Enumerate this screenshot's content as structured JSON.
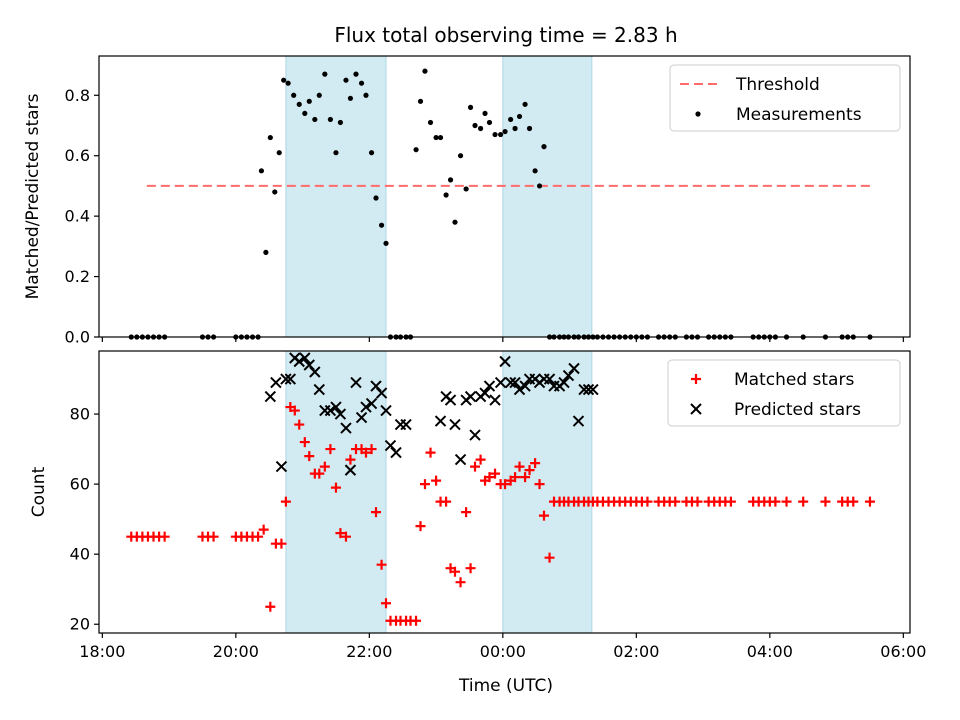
{
  "title": "Flux total observing time = 2.83 h",
  "xlabel": "Time (UTC)",
  "colors": {
    "shade": "#add8e6",
    "threshold": "#ff6b6b",
    "measurements": "#000000",
    "matched": "#ff0000",
    "predicted": "#000000"
  },
  "chart_data": [
    {
      "type": "scatter",
      "ylabel": "Matched/Predicted stars",
      "xlim": [
        18.0,
        6.05
      ],
      "x_axis_note": "times in hours UTC across midnight",
      "ylim": [
        0,
        0.93
      ],
      "yticks": [
        "0.0",
        "0.2",
        "0.4",
        "0.6",
        "0.8"
      ],
      "legend": [
        "Threshold",
        "Measurements"
      ],
      "legend_position": "top-right",
      "threshold": 0.5,
      "threshold_xrange": [
        "18:40",
        "05:30"
      ],
      "shaded_intervals": [
        [
          "20:45",
          "22:15"
        ],
        [
          "00:00",
          "01:20"
        ]
      ],
      "series": [
        {
          "name": "Measurements",
          "x": [
            "18:26",
            "18:31",
            "18:36",
            "18:41",
            "18:46",
            "18:51",
            "18:56",
            "19:30",
            "19:35",
            "19:40",
            "20:00",
            "20:05",
            "20:10",
            "20:15",
            "20:20",
            "20:23",
            "20:27",
            "20:31",
            "20:35",
            "20:39",
            "20:43",
            "20:47",
            "20:52",
            "20:57",
            "21:02",
            "21:06",
            "21:11",
            "21:15",
            "21:20",
            "21:25",
            "21:30",
            "21:34",
            "21:39",
            "21:43",
            "21:48",
            "21:53",
            "21:57",
            "22:02",
            "22:06",
            "22:11",
            "22:15",
            "22:19",
            "22:24",
            "22:28",
            "22:33",
            "22:37",
            "22:42",
            "22:46",
            "22:50",
            "22:55",
            "23:00",
            "23:04",
            "23:09",
            "23:13",
            "23:17",
            "23:22",
            "23:27",
            "23:31",
            "23:35",
            "23:40",
            "23:44",
            "23:48",
            "23:53",
            "23:58",
            "00:02",
            "00:07",
            "00:11",
            "00:15",
            "00:20",
            "00:24",
            "00:29",
            "00:33",
            "00:37",
            "00:42",
            "00:46",
            "00:51",
            "00:55",
            "00:59",
            "01:04",
            "01:08",
            "01:13",
            "01:17",
            "01:21",
            "01:25",
            "01:30",
            "01:35",
            "01:40",
            "01:45",
            "01:50",
            "01:55",
            "02:00",
            "02:05",
            "02:10",
            "02:20",
            "02:25",
            "02:30",
            "02:35",
            "02:45",
            "02:50",
            "02:55",
            "03:05",
            "03:10",
            "03:15",
            "03:20",
            "03:25",
            "03:45",
            "03:50",
            "03:55",
            "04:00",
            "04:05",
            "04:15",
            "04:30",
            "04:50",
            "05:05",
            "05:10",
            "05:15",
            "05:30"
          ],
          "y": [
            0,
            0,
            0,
            0,
            0,
            0,
            0,
            0,
            0,
            0,
            0,
            0,
            0,
            0,
            0,
            0.55,
            0.28,
            0.66,
            0.48,
            0.61,
            0.85,
            0.84,
            0.8,
            0.77,
            0.74,
            0.78,
            0.72,
            0.8,
            0.87,
            0.72,
            0.61,
            0.71,
            0.85,
            0.79,
            0.87,
            0.84,
            0.8,
            0.61,
            0.46,
            0.37,
            0.31,
            0,
            0,
            0,
            0,
            0,
            0.62,
            0.78,
            0.88,
            0.71,
            0.66,
            0.66,
            0.47,
            0.52,
            0.38,
            0.6,
            0.49,
            0.76,
            0.7,
            0.69,
            0.74,
            0.71,
            0.67,
            0.67,
            0.68,
            0.72,
            0.69,
            0.73,
            0.77,
            0.69,
            0.55,
            0.5,
            0.63,
            0,
            0,
            0,
            0,
            0,
            0,
            0,
            0,
            0,
            0,
            0,
            0,
            0,
            0,
            0,
            0,
            0,
            0,
            0,
            0,
            0,
            0,
            0,
            0,
            0,
            0,
            0,
            0,
            0,
            0,
            0,
            0,
            0,
            0,
            0,
            0,
            0,
            0,
            0,
            0,
            0,
            0,
            0,
            0
          ]
        }
      ]
    },
    {
      "type": "scatter",
      "ylabel": "Count",
      "ylim": [
        17.5,
        98
      ],
      "yticks": [
        "20",
        "40",
        "60",
        "80"
      ],
      "xticks": [
        "18:00",
        "20:00",
        "22:00",
        "00:00",
        "02:00",
        "04:00",
        "06:00"
      ],
      "legend": [
        "Matched stars",
        "Predicted stars"
      ],
      "legend_position": "top-right",
      "shaded_intervals": [
        [
          "20:45",
          "22:15"
        ],
        [
          "00:00",
          "01:20"
        ]
      ],
      "series": [
        {
          "name": "Matched stars",
          "x": [
            "18:26",
            "18:31",
            "18:36",
            "18:41",
            "18:46",
            "18:51",
            "18:56",
            "19:30",
            "19:35",
            "19:40",
            "20:00",
            "20:05",
            "20:10",
            "20:15",
            "20:20",
            "20:25",
            "20:31",
            "20:36",
            "20:41",
            "20:45",
            "20:49",
            "20:53",
            "20:57",
            "21:02",
            "21:06",
            "21:11",
            "21:15",
            "21:20",
            "21:25",
            "21:30",
            "21:34",
            "21:39",
            "21:43",
            "21:48",
            "21:53",
            "21:57",
            "22:02",
            "22:06",
            "22:11",
            "22:15",
            "22:19",
            "22:24",
            "22:28",
            "22:33",
            "22:37",
            "22:42",
            "22:46",
            "22:50",
            "22:55",
            "23:00",
            "23:04",
            "23:09",
            "23:13",
            "23:17",
            "23:22",
            "23:27",
            "23:31",
            "23:35",
            "23:40",
            "23:44",
            "23:48",
            "23:53",
            "23:58",
            "00:02",
            "00:07",
            "00:11",
            "00:15",
            "00:20",
            "00:24",
            "00:29",
            "00:33",
            "00:37",
            "00:42",
            "00:46",
            "00:51",
            "00:55",
            "00:59",
            "01:04",
            "01:08",
            "01:13",
            "01:17",
            "01:21",
            "01:25",
            "01:30",
            "01:35",
            "01:40",
            "01:45",
            "01:50",
            "01:55",
            "02:00",
            "02:05",
            "02:10",
            "02:20",
            "02:25",
            "02:30",
            "02:35",
            "02:45",
            "02:50",
            "02:55",
            "03:05",
            "03:10",
            "03:15",
            "03:20",
            "03:25",
            "03:45",
            "03:50",
            "03:55",
            "04:00",
            "04:05",
            "04:15",
            "04:30",
            "04:50",
            "05:05",
            "05:10",
            "05:15",
            "05:30"
          ],
          "y": [
            45,
            45,
            45,
            45,
            45,
            45,
            45,
            45,
            45,
            45,
            45,
            45,
            45,
            45,
            45,
            47,
            25,
            43,
            43,
            55,
            82,
            81,
            77,
            72,
            68,
            63,
            63,
            65,
            70,
            59,
            46,
            45,
            67,
            70,
            70,
            69,
            70,
            52,
            37,
            26,
            21,
            21,
            21,
            21,
            21,
            21,
            48,
            60,
            69,
            61,
            55,
            55,
            36,
            35,
            32,
            52,
            36,
            65,
            67,
            61,
            62,
            63,
            60,
            60,
            61,
            62,
            65,
            62,
            64,
            66,
            60,
            51,
            39,
            55,
            55,
            55,
            55,
            55,
            55,
            55,
            55,
            55,
            55,
            55,
            55,
            55,
            55,
            55,
            55,
            55,
            55,
            55,
            55,
            55,
            55,
            55,
            55,
            55,
            55,
            55,
            55,
            55,
            55,
            55,
            55,
            55,
            55,
            55,
            55,
            55,
            55,
            55,
            55,
            55,
            55,
            55
          ]
        },
        {
          "name": "Predicted stars",
          "x": [
            "20:31",
            "20:36",
            "20:41",
            "20:45",
            "20:49",
            "20:53",
            "20:57",
            "21:02",
            "21:06",
            "21:11",
            "21:15",
            "21:20",
            "21:25",
            "21:30",
            "21:34",
            "21:39",
            "21:43",
            "21:48",
            "21:53",
            "21:57",
            "22:02",
            "22:06",
            "22:11",
            "22:15",
            "22:19",
            "22:24",
            "22:28",
            "22:33",
            "23:04",
            "23:09",
            "23:13",
            "23:17",
            "23:22",
            "23:27",
            "23:31",
            "23:35",
            "23:40",
            "23:44",
            "23:48",
            "23:53",
            "23:58",
            "00:02",
            "00:07",
            "00:11",
            "00:15",
            "00:20",
            "00:24",
            "00:29",
            "00:33",
            "00:37",
            "00:42",
            "00:46",
            "00:51",
            "00:55",
            "00:59",
            "01:04",
            "01:08",
            "01:13",
            "01:17",
            "01:21"
          ],
          "y": [
            85,
            89,
            65,
            90,
            90,
            96,
            95,
            96,
            94,
            92,
            87,
            81,
            81,
            82,
            80,
            76,
            64,
            89,
            79,
            82,
            83,
            88,
            86,
            81,
            71,
            69,
            77,
            77,
            78,
            85,
            84,
            77,
            67,
            84,
            85,
            74,
            85,
            86,
            88,
            84,
            89,
            95,
            89,
            89,
            87,
            88,
            90,
            90,
            89,
            90,
            90,
            88,
            88,
            89,
            91,
            93,
            78,
            87,
            87,
            87
          ]
        }
      ]
    }
  ]
}
